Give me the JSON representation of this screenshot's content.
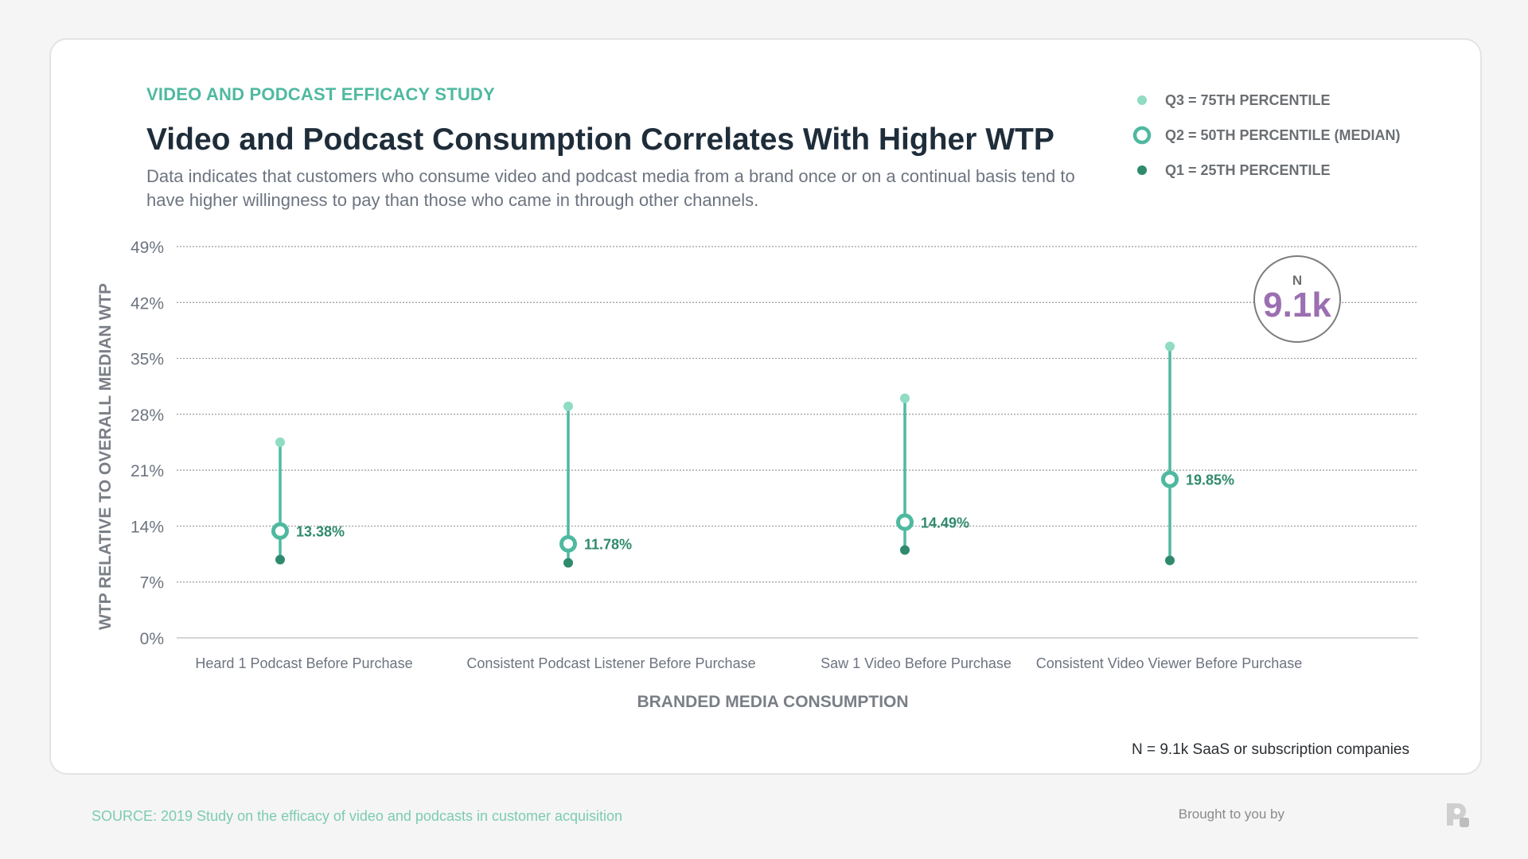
{
  "header": {
    "eyebrow": "VIDEO AND PODCAST EFFICACY STUDY",
    "title": "Video and Podcast Consumption Correlates With Higher WTP",
    "subtitle": "Data indicates that customers who consume video and podcast media from a brand once or on a continual basis tend to have higher willingness to pay than those who came in through other channels."
  },
  "legend": {
    "items": [
      {
        "label": "Q3 = 75TH PERCENTILE",
        "icon": "light-dot-icon"
      },
      {
        "label": "Q2 = 50TH PERCENTILE (MEDIAN)",
        "icon": "ring-icon"
      },
      {
        "label": "Q1 = 25TH PERCENTILE",
        "icon": "dark-dot-icon"
      }
    ]
  },
  "badge": {
    "label": "N",
    "value": "9.1k"
  },
  "footnote": "N = 9.1k SaaS or subscription companies",
  "source": "SOURCE: 2019 Study on the efficacy of video and podcasts in customer acquisition",
  "credit": {
    "text": "Brought to you by",
    "logo_icon": "brand-logo-icon"
  },
  "colors": {
    "accent": "#4fb9a0",
    "q3": "#8fdcc2",
    "q2": "#4fb9a0",
    "q1": "#2f8a6d",
    "label": "#2f8a6d",
    "badge": "#9b6fb1",
    "source": "#7ccbb2",
    "axis_text": "#6d7480"
  },
  "chart_data": {
    "type": "range-dot",
    "ylabel": "WTP RELATIVE TO OVERALL MEDIAN WTP",
    "xlabel": "BRANDED MEDIA CONSUMPTION",
    "ylim": [
      0,
      49
    ],
    "yticks": [
      0,
      7,
      14,
      21,
      28,
      35,
      42,
      49
    ],
    "ytick_labels": [
      "0%",
      "7%",
      "14%",
      "21%",
      "28%",
      "35%",
      "42%",
      "49%"
    ],
    "grid": true,
    "categories": [
      "Heard 1 Podcast Before Purchase",
      "Consistent Podcast Listener Before Purchase",
      "Saw 1 Video Before Purchase",
      "Consistent Video Viewer Before Purchase"
    ],
    "series": [
      {
        "name": "Q3 = 75TH PERCENTILE",
        "values": [
          24.5,
          29.0,
          30.0,
          36.5
        ]
      },
      {
        "name": "Q2 = 50TH PERCENTILE (MEDIAN)",
        "values": [
          13.38,
          11.78,
          14.49,
          19.85
        ]
      },
      {
        "name": "Q1 = 25TH PERCENTILE",
        "values": [
          9.8,
          9.4,
          11.0,
          9.7
        ]
      }
    ],
    "median_labels": [
      "13.38%",
      "11.78%",
      "14.49%",
      "19.85%"
    ]
  }
}
